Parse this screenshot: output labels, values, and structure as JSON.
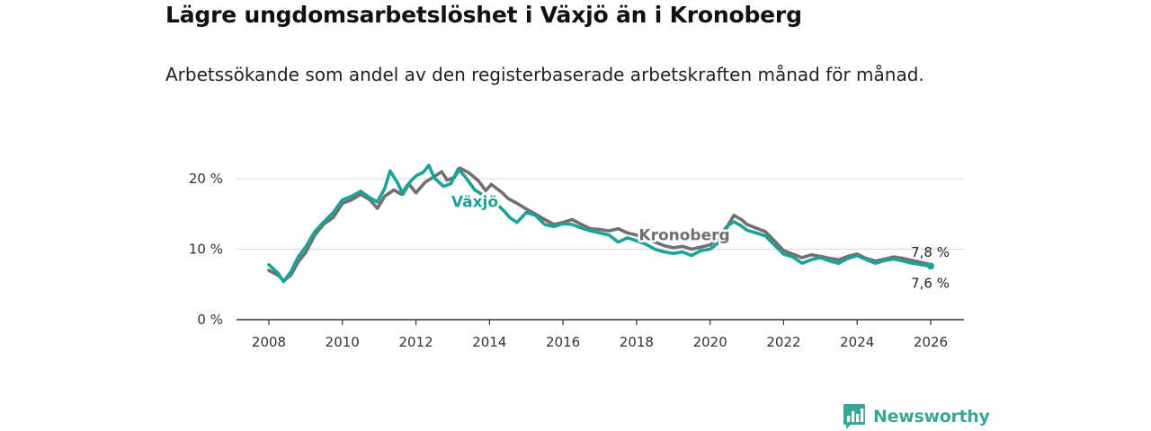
{
  "title": "Lägre ungdomsarbetslöshet i Växjö än i Kronoberg",
  "subtitle": "Arbetssökande som andel av den registerbaserade arbetskraften månad för månad.",
  "brand": "Newsworthy",
  "colors": {
    "vaxjo": "#1aa396",
    "kronoberg": "#707070",
    "grid": "#d9d9d9",
    "axis": "#333333",
    "brand": "#3aa69a"
  },
  "chart_data": {
    "type": "line",
    "title": "Lägre ungdomsarbetslöshet i Växjö än i Kronoberg",
    "xlabel": "",
    "ylabel": "",
    "xlim": [
      2007.5,
      2027.0
    ],
    "ylim": [
      0,
      20
    ],
    "grid": true,
    "x_ticks": [
      2008,
      2010,
      2012,
      2014,
      2016,
      2018,
      2020,
      2022,
      2024,
      2026
    ],
    "x_tick_labels": [
      "2008",
      "2010",
      "2012",
      "2014",
      "2016",
      "2018",
      "2020",
      "2022",
      "2024",
      "2026"
    ],
    "y_ticks": [
      0,
      10,
      20
    ],
    "y_tick_labels": [
      "0 %",
      "10 %",
      "20 %"
    ],
    "series": [
      {
        "name": "Kronoberg",
        "label_at": [
          2019.3,
          11.3
        ],
        "end_label": "7,8 %",
        "points": [
          [
            2008.0,
            7.0
          ],
          [
            2008.25,
            6.3
          ],
          [
            2008.4,
            5.5
          ],
          [
            2008.6,
            6.3
          ],
          [
            2008.8,
            8.2
          ],
          [
            2009.0,
            9.5
          ],
          [
            2009.25,
            12.0
          ],
          [
            2009.5,
            13.6
          ],
          [
            2009.75,
            14.5
          ],
          [
            2010.0,
            16.5
          ],
          [
            2010.25,
            17.0
          ],
          [
            2010.5,
            17.8
          ],
          [
            2010.75,
            17.0
          ],
          [
            2010.95,
            15.8
          ],
          [
            2011.15,
            17.5
          ],
          [
            2011.4,
            18.4
          ],
          [
            2011.6,
            17.8
          ],
          [
            2011.8,
            19.3
          ],
          [
            2012.0,
            18.0
          ],
          [
            2012.25,
            19.5
          ],
          [
            2012.5,
            20.3
          ],
          [
            2012.7,
            21.0
          ],
          [
            2012.85,
            19.8
          ],
          [
            2013.05,
            20.2
          ],
          [
            2013.2,
            21.5
          ],
          [
            2013.45,
            20.8
          ],
          [
            2013.7,
            19.7
          ],
          [
            2013.9,
            18.3
          ],
          [
            2014.05,
            19.2
          ],
          [
            2014.2,
            18.6
          ],
          [
            2014.35,
            18.0
          ],
          [
            2014.5,
            17.2
          ],
          [
            2014.75,
            16.5
          ],
          [
            2015.0,
            15.7
          ],
          [
            2015.25,
            15.0
          ],
          [
            2015.5,
            14.2
          ],
          [
            2015.75,
            13.5
          ],
          [
            2016.0,
            13.8
          ],
          [
            2016.25,
            14.2
          ],
          [
            2016.5,
            13.5
          ],
          [
            2016.75,
            12.9
          ],
          [
            2017.0,
            12.8
          ],
          [
            2017.25,
            12.6
          ],
          [
            2017.5,
            12.9
          ],
          [
            2017.75,
            12.3
          ],
          [
            2018.0,
            12.0
          ],
          [
            2018.25,
            11.5
          ],
          [
            2018.5,
            11.0
          ],
          [
            2018.75,
            10.5
          ],
          [
            2019.0,
            10.2
          ],
          [
            2019.25,
            10.4
          ],
          [
            2019.5,
            10.0
          ],
          [
            2019.75,
            10.3
          ],
          [
            2020.0,
            10.6
          ],
          [
            2020.25,
            11.8
          ],
          [
            2020.5,
            13.5
          ],
          [
            2020.65,
            14.8
          ],
          [
            2020.85,
            14.2
          ],
          [
            2021.0,
            13.5
          ],
          [
            2021.25,
            13.0
          ],
          [
            2021.5,
            12.5
          ],
          [
            2021.75,
            11.2
          ],
          [
            2022.0,
            9.8
          ],
          [
            2022.25,
            9.3
          ],
          [
            2022.5,
            8.8
          ],
          [
            2022.75,
            9.2
          ],
          [
            2023.0,
            9.0
          ],
          [
            2023.25,
            8.7
          ],
          [
            2023.5,
            8.5
          ],
          [
            2023.75,
            9.0
          ],
          [
            2024.0,
            9.3
          ],
          [
            2024.25,
            8.7
          ],
          [
            2024.5,
            8.3
          ],
          [
            2024.75,
            8.6
          ],
          [
            2025.0,
            8.9
          ],
          [
            2025.25,
            8.7
          ],
          [
            2025.5,
            8.4
          ],
          [
            2025.75,
            8.1
          ],
          [
            2026.0,
            7.8
          ]
        ]
      },
      {
        "name": "Växjö",
        "label_at": [
          2013.6,
          16.0
        ],
        "end_label": "7,6 %",
        "points": [
          [
            2008.0,
            7.8
          ],
          [
            2008.25,
            6.6
          ],
          [
            2008.4,
            5.4
          ],
          [
            2008.6,
            6.8
          ],
          [
            2008.8,
            8.9
          ],
          [
            2009.0,
            10.3
          ],
          [
            2009.25,
            12.5
          ],
          [
            2009.5,
            13.9
          ],
          [
            2009.75,
            15.2
          ],
          [
            2010.0,
            17.0
          ],
          [
            2010.25,
            17.5
          ],
          [
            2010.5,
            18.2
          ],
          [
            2010.75,
            17.3
          ],
          [
            2010.95,
            16.7
          ],
          [
            2011.15,
            18.6
          ],
          [
            2011.3,
            21.1
          ],
          [
            2011.5,
            19.4
          ],
          [
            2011.65,
            17.8
          ],
          [
            2011.85,
            19.6
          ],
          [
            2012.0,
            20.4
          ],
          [
            2012.2,
            20.9
          ],
          [
            2012.35,
            21.9
          ],
          [
            2012.5,
            20.1
          ],
          [
            2012.75,
            18.9
          ],
          [
            2012.95,
            19.3
          ],
          [
            2013.15,
            21.4
          ],
          [
            2013.35,
            20.2
          ],
          [
            2013.6,
            18.4
          ],
          [
            2013.85,
            17.6
          ],
          [
            2014.0,
            17.2
          ],
          [
            2014.2,
            16.4
          ],
          [
            2014.4,
            15.4
          ],
          [
            2014.55,
            14.5
          ],
          [
            2014.75,
            13.8
          ],
          [
            2015.0,
            15.2
          ],
          [
            2015.25,
            14.8
          ],
          [
            2015.5,
            13.5
          ],
          [
            2015.75,
            13.2
          ],
          [
            2016.0,
            13.6
          ],
          [
            2016.25,
            13.5
          ],
          [
            2016.5,
            13.0
          ],
          [
            2016.75,
            12.6
          ],
          [
            2017.0,
            12.3
          ],
          [
            2017.25,
            12.0
          ],
          [
            2017.5,
            11.0
          ],
          [
            2017.75,
            11.6
          ],
          [
            2018.0,
            11.2
          ],
          [
            2018.25,
            10.7
          ],
          [
            2018.5,
            10.0
          ],
          [
            2018.75,
            9.6
          ],
          [
            2019.0,
            9.4
          ],
          [
            2019.25,
            9.6
          ],
          [
            2019.5,
            9.1
          ],
          [
            2019.75,
            9.8
          ],
          [
            2020.0,
            10.0
          ],
          [
            2020.25,
            11.0
          ],
          [
            2020.5,
            13.4
          ],
          [
            2020.65,
            13.9
          ],
          [
            2020.85,
            13.3
          ],
          [
            2021.0,
            12.7
          ],
          [
            2021.25,
            12.3
          ],
          [
            2021.5,
            11.9
          ],
          [
            2021.75,
            10.6
          ],
          [
            2022.0,
            9.3
          ],
          [
            2022.25,
            8.9
          ],
          [
            2022.5,
            8.0
          ],
          [
            2022.75,
            8.5
          ],
          [
            2023.0,
            8.8
          ],
          [
            2023.25,
            8.3
          ],
          [
            2023.5,
            8.0
          ],
          [
            2023.75,
            8.7
          ],
          [
            2024.0,
            9.1
          ],
          [
            2024.25,
            8.5
          ],
          [
            2024.5,
            8.0
          ],
          [
            2024.75,
            8.4
          ],
          [
            2025.0,
            8.6
          ],
          [
            2025.25,
            8.3
          ],
          [
            2025.5,
            8.0
          ],
          [
            2025.75,
            7.8
          ],
          [
            2026.0,
            7.6
          ]
        ]
      }
    ]
  }
}
